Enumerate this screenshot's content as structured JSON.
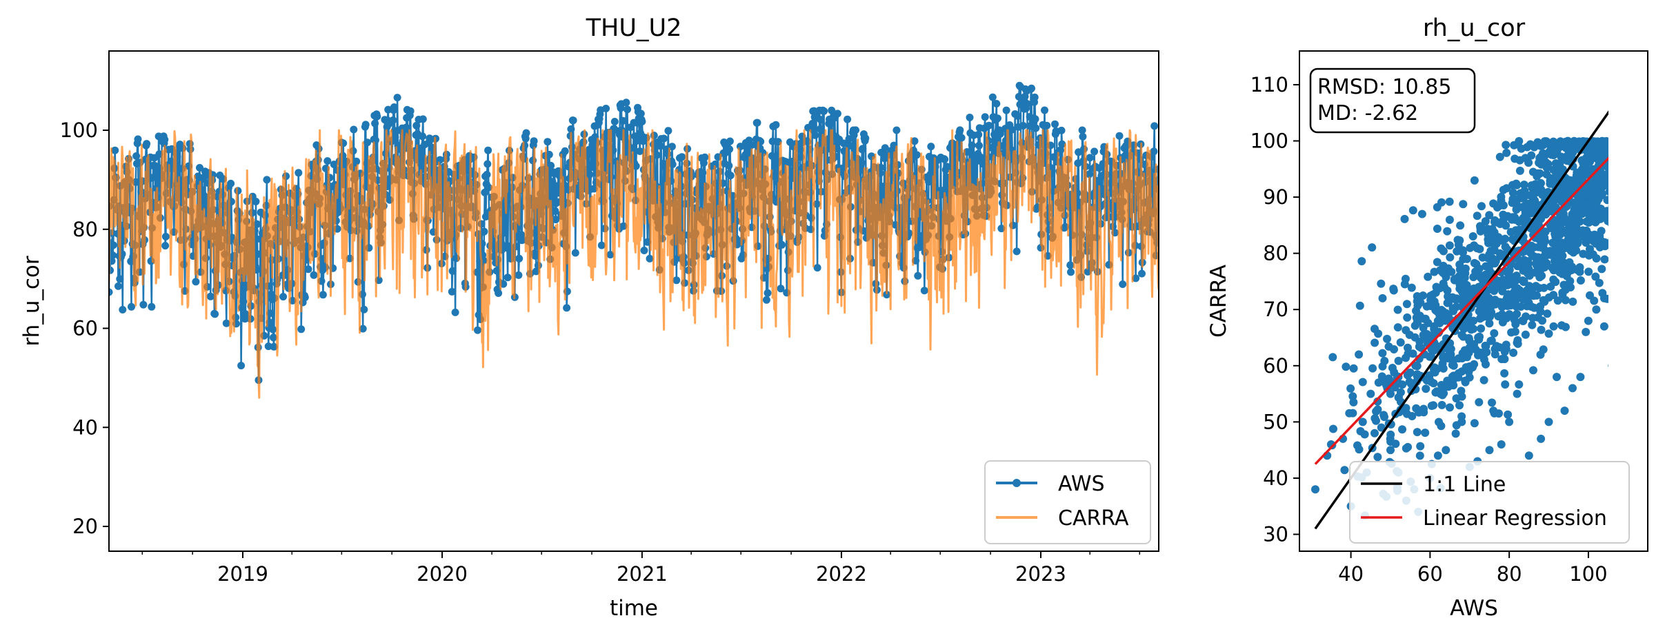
{
  "colors": {
    "aws": "#1f77b4",
    "carra": "#ff7f0e",
    "one_to_one": "#000000",
    "regression": "#e41a1c"
  },
  "chart_data": [
    {
      "type": "line",
      "title": "THU_U2",
      "xlabel": "time",
      "ylabel": "rh_u_cor",
      "xlim": [
        "2018-05-01",
        "2023-08-05"
      ],
      "ylim": [
        15,
        116
      ],
      "xticks": [
        "2019",
        "2020",
        "2021",
        "2022",
        "2023"
      ],
      "xtick_dates": [
        "2019-01-01",
        "2020-01-01",
        "2021-01-01",
        "2022-01-01",
        "2023-01-01"
      ],
      "yticks": [
        20,
        40,
        60,
        80,
        100
      ],
      "legend": "bottom-right",
      "grid": false,
      "series": [
        {
          "name": "AWS",
          "markers": true,
          "x": [
            "2018-05",
            "2018-06",
            "2018-07",
            "2018-08",
            "2018-09",
            "2018-10",
            "2018-11",
            "2018-12",
            "2019-01",
            "2019-02",
            "2019-03",
            "2019-04",
            "2019-05",
            "2019-06",
            "2019-07",
            "2019-08",
            "2019-09",
            "2019-10",
            "2019-11",
            "2019-12",
            "2020-01",
            "2020-02",
            "2020-03",
            "2020-04",
            "2020-05",
            "2020-06",
            "2020-07",
            "2020-08",
            "2020-09",
            "2020-10",
            "2020-11",
            "2020-12",
            "2021-01",
            "2021-02",
            "2021-03",
            "2021-04",
            "2021-05",
            "2021-06",
            "2021-07",
            "2021-08",
            "2021-09",
            "2021-10",
            "2021-11",
            "2021-12",
            "2022-01",
            "2022-02",
            "2022-03",
            "2022-04",
            "2022-05",
            "2022-06",
            "2022-07",
            "2022-08",
            "2022-09",
            "2022-10",
            "2022-11",
            "2022-12",
            "2023-01",
            "2023-02",
            "2023-03",
            "2023-04",
            "2023-05",
            "2023-06",
            "2023-07",
            "2023-08"
          ],
          "mean": [
            82,
            80,
            84,
            90,
            82,
            76,
            72,
            70,
            68,
            70,
            74,
            72,
            78,
            82,
            86,
            84,
            92,
            96,
            94,
            90,
            88,
            86,
            80,
            78,
            80,
            84,
            86,
            88,
            88,
            90,
            94,
            96,
            86,
            84,
            80,
            82,
            82,
            84,
            84,
            84,
            86,
            88,
            92,
            96,
            92,
            84,
            80,
            82,
            82,
            86,
            86,
            86,
            88,
            92,
            100,
            98,
            88,
            82,
            80,
            82,
            84,
            84,
            86,
            86
          ],
          "max": [
            100,
            101,
            100,
            100,
            98,
            96,
            94,
            92,
            90,
            90,
            94,
            96,
            100,
            101,
            101,
            102,
            104,
            107,
            105,
            100,
            95,
            95,
            94,
            100,
            100,
            101,
            101,
            102,
            102,
            104,
            105,
            106,
            101,
            100,
            99,
            99,
            100,
            101,
            101,
            102,
            102,
            103,
            104,
            104,
            102,
            99,
            100,
            100,
            101,
            101,
            102,
            102,
            104,
            108,
            112,
            111,
            102,
            100,
            100,
            100,
            101,
            101,
            101,
            102
          ],
          "min": [
            66,
            48,
            55,
            54,
            56,
            55,
            46,
            40,
            31,
            34,
            44,
            44,
            49,
            55,
            52,
            54,
            56,
            60,
            62,
            55,
            50,
            47,
            48,
            56,
            57,
            55,
            51,
            50,
            60,
            51,
            56,
            57,
            64,
            60,
            60,
            54,
            52,
            50,
            47,
            50,
            56,
            55,
            58,
            46,
            55,
            57,
            58,
            56,
            55,
            56,
            58,
            60,
            62,
            60,
            56,
            55,
            55,
            60,
            61,
            60,
            60,
            60,
            62,
            70
          ]
        },
        {
          "name": "CARRA",
          "markers": false,
          "x": [
            "2018-05",
            "2018-06",
            "2018-07",
            "2018-08",
            "2018-09",
            "2018-10",
            "2018-11",
            "2018-12",
            "2019-01",
            "2019-02",
            "2019-03",
            "2019-04",
            "2019-05",
            "2019-06",
            "2019-07",
            "2019-08",
            "2019-09",
            "2019-10",
            "2019-11",
            "2019-12",
            "2020-01",
            "2020-02",
            "2020-03",
            "2020-04",
            "2020-05",
            "2020-06",
            "2020-07",
            "2020-08",
            "2020-09",
            "2020-10",
            "2020-11",
            "2020-12",
            "2021-01",
            "2021-02",
            "2021-03",
            "2021-04",
            "2021-05",
            "2021-06",
            "2021-07",
            "2021-08",
            "2021-09",
            "2021-10",
            "2021-11",
            "2021-12",
            "2022-01",
            "2022-02",
            "2022-03",
            "2022-04",
            "2022-05",
            "2022-06",
            "2022-07",
            "2022-08",
            "2022-09",
            "2022-10",
            "2022-11",
            "2022-12",
            "2023-01",
            "2023-02",
            "2023-03",
            "2023-04",
            "2023-05",
            "2023-06",
            "2023-07",
            "2023-08"
          ],
          "mean": [
            84,
            82,
            82,
            84,
            80,
            76,
            72,
            70,
            68,
            70,
            74,
            76,
            80,
            82,
            84,
            82,
            86,
            88,
            86,
            84,
            82,
            80,
            76,
            76,
            78,
            82,
            82,
            84,
            84,
            84,
            86,
            86,
            82,
            80,
            78,
            80,
            80,
            82,
            82,
            82,
            82,
            84,
            86,
            88,
            86,
            80,
            78,
            80,
            80,
            82,
            82,
            82,
            84,
            86,
            88,
            88,
            84,
            80,
            78,
            80,
            80,
            82,
            82,
            84
          ],
          "max": [
            100,
            100,
            100,
            100,
            100,
            98,
            96,
            96,
            96,
            96,
            98,
            100,
            100,
            100,
            100,
            100,
            100,
            100,
            100,
            100,
            100,
            100,
            98,
            100,
            100,
            100,
            100,
            100,
            100,
            100,
            100,
            100,
            100,
            100,
            100,
            100,
            100,
            100,
            100,
            100,
            100,
            100,
            100,
            100,
            100,
            100,
            100,
            100,
            100,
            100,
            100,
            100,
            100,
            100,
            100,
            100,
            100,
            100,
            100,
            100,
            100,
            100,
            100,
            100
          ],
          "min": [
            60,
            56,
            52,
            58,
            50,
            46,
            42,
            40,
            36,
            38,
            42,
            50,
            54,
            52,
            46,
            44,
            50,
            40,
            44,
            50,
            52,
            48,
            36,
            44,
            50,
            46,
            48,
            50,
            52,
            45,
            42,
            50,
            46,
            50,
            48,
            42,
            45,
            38,
            40,
            44,
            50,
            46,
            48,
            34,
            44,
            50,
            46,
            48,
            44,
            42,
            46,
            48,
            50,
            44,
            48,
            52,
            46,
            46,
            50,
            35,
            46,
            48,
            50,
            64
          ]
        }
      ]
    },
    {
      "type": "scatter",
      "title": "rh_u_cor",
      "xlabel": "AWS",
      "ylabel": "CARRA",
      "xlim": [
        27,
        115
      ],
      "ylim": [
        27,
        116
      ],
      "xticks": [
        40,
        60,
        80,
        100
      ],
      "yticks": [
        30,
        40,
        50,
        60,
        70,
        80,
        90,
        100,
        110
      ],
      "stats": [
        "RMSD: 10.85",
        "MD: -2.62"
      ],
      "legend": "bottom-right",
      "grid": false,
      "lines": [
        {
          "name": "1:1 Line",
          "x": [
            31,
            112
          ],
          "y": [
            31,
            112
          ]
        },
        {
          "name": "Linear Regression",
          "x": [
            31,
            112
          ],
          "y": [
            42.5,
            102
          ]
        }
      ],
      "cloud": {
        "x_range": [
          31,
          112
        ],
        "carra_max": 100,
        "slope": 0.73,
        "intercept": 20
      },
      "points": [
        {
          "x": 31,
          "y": 38
        },
        {
          "x": 34,
          "y": 44
        },
        {
          "x": 35,
          "y": 46
        },
        {
          "x": 38,
          "y": 47
        },
        {
          "x": 40,
          "y": 35
        },
        {
          "x": 42,
          "y": 62
        },
        {
          "x": 44,
          "y": 41
        },
        {
          "x": 46,
          "y": 48
        },
        {
          "x": 47,
          "y": 57
        },
        {
          "x": 48,
          "y": 72
        },
        {
          "x": 50,
          "y": 45
        },
        {
          "x": 52,
          "y": 41
        },
        {
          "x": 54,
          "y": 36
        },
        {
          "x": 56,
          "y": 38
        },
        {
          "x": 57,
          "y": 34
        },
        {
          "x": 58,
          "y": 87
        },
        {
          "x": 60,
          "y": 40
        },
        {
          "x": 62,
          "y": 44
        },
        {
          "x": 63,
          "y": 53
        },
        {
          "x": 64,
          "y": 45
        },
        {
          "x": 70,
          "y": 42
        },
        {
          "x": 72,
          "y": 43
        },
        {
          "x": 75,
          "y": 45
        },
        {
          "x": 78,
          "y": 46
        },
        {
          "x": 85,
          "y": 44
        },
        {
          "x": 88,
          "y": 47
        },
        {
          "x": 90,
          "y": 50
        },
        {
          "x": 94,
          "y": 52
        },
        {
          "x": 96,
          "y": 56
        },
        {
          "x": 98,
          "y": 58
        },
        {
          "x": 104,
          "y": 67
        },
        {
          "x": 106,
          "y": 60
        },
        {
          "x": 108,
          "y": 64
        },
        {
          "x": 110,
          "y": 60
        },
        {
          "x": 111,
          "y": 77
        },
        {
          "x": 109,
          "y": 88
        },
        {
          "x": 107,
          "y": 90
        },
        {
          "x": 104,
          "y": 72
        },
        {
          "x": 102,
          "y": 70
        },
        {
          "x": 100,
          "y": 68
        },
        {
          "x": 92,
          "y": 58
        },
        {
          "x": 82,
          "y": 55
        },
        {
          "x": 80,
          "y": 50
        },
        {
          "x": 76,
          "y": 52
        },
        {
          "x": 68,
          "y": 50
        },
        {
          "x": 66,
          "y": 60
        },
        {
          "x": 65,
          "y": 64
        },
        {
          "x": 61,
          "y": 67
        },
        {
          "x": 52,
          "y": 58
        },
        {
          "x": 50,
          "y": 55
        },
        {
          "x": 45,
          "y": 55
        },
        {
          "x": 43,
          "y": 50
        }
      ]
    }
  ]
}
